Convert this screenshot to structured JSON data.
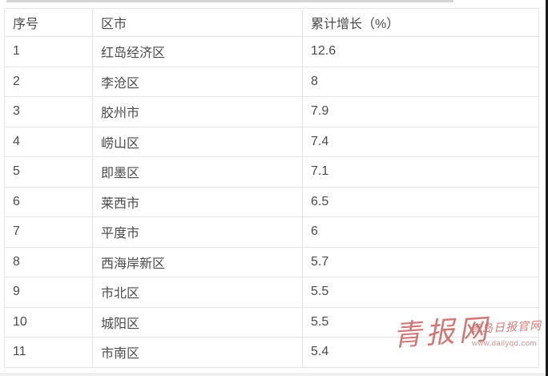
{
  "chart_data": {
    "type": "table",
    "columns": [
      "序号",
      "区市",
      "累计增长（%）"
    ],
    "rows": [
      [
        "1",
        "红岛经济区",
        "12.6"
      ],
      [
        "2",
        "李沧区",
        "8"
      ],
      [
        "3",
        "胶州市",
        "7.9"
      ],
      [
        "4",
        "崂山区",
        "7.4"
      ],
      [
        "5",
        "即墨区",
        "7.1"
      ],
      [
        "6",
        "莱西市",
        "6.5"
      ],
      [
        "7",
        "平度市",
        "6"
      ],
      [
        "8",
        "西海岸新区",
        "5.7"
      ],
      [
        "9",
        "市北区",
        "5.5"
      ],
      [
        "10",
        "城阳区",
        "5.5"
      ],
      [
        "11",
        "市南区",
        "5.4"
      ]
    ]
  },
  "watermark": {
    "logo": "青报网",
    "site_name": "青岛日报官网",
    "url": "www.dailyqd.com"
  },
  "colors": {
    "cell_text": "#4a4a4a",
    "grid_border": "#e4e4e4",
    "outer_border": "#d8d8d8",
    "watermark_red": "#c25955",
    "right_edge_strip": "#1a1a1a"
  }
}
